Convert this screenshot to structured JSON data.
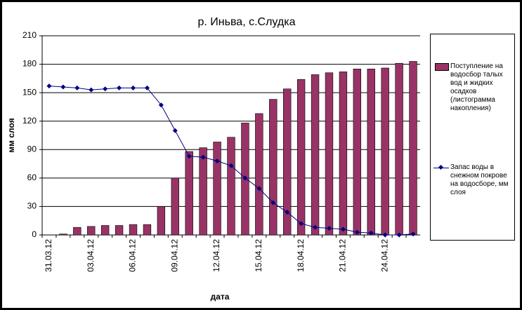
{
  "chart_data": {
    "type": "bar-line",
    "title": "р. Иньва, с.Слудка",
    "x_label": "дата",
    "y_label": "мм слоя",
    "categories": [
      "31.03.12",
      null,
      null,
      "03.04.12",
      null,
      null,
      "06.04.12",
      null,
      null,
      "09.04.12",
      null,
      null,
      "12.04.12",
      null,
      null,
      "15.04.12",
      null,
      null,
      "18.04.12",
      null,
      null,
      "21.04.12",
      null,
      null,
      "24.04.12",
      null,
      null
    ],
    "series": [
      {
        "name": "Поступление на водосбор талых вод и жидких осадков (листограмма накопления)",
        "type": "bar",
        "color": "#993366",
        "values": [
          0,
          1,
          8,
          9,
          10,
          10,
          11,
          11,
          30,
          60,
          88,
          92,
          98,
          103,
          118,
          128,
          143,
          154,
          164,
          169,
          171,
          172,
          175,
          175,
          176,
          181,
          183
        ]
      },
      {
        "name": "Запас воды в снежном покрове на водосборе, мм слоя",
        "type": "line",
        "color": "#000080",
        "values": [
          157,
          156,
          155,
          153,
          154,
          155,
          155,
          155,
          137,
          110,
          83,
          82,
          78,
          73,
          60,
          49,
          34,
          24,
          12,
          8,
          7,
          6,
          3,
          2,
          0,
          0,
          1
        ]
      }
    ],
    "ylim": [
      0,
      210
    ],
    "yticks": [
      0,
      30,
      60,
      90,
      120,
      150,
      180,
      210
    ],
    "grid": true
  }
}
